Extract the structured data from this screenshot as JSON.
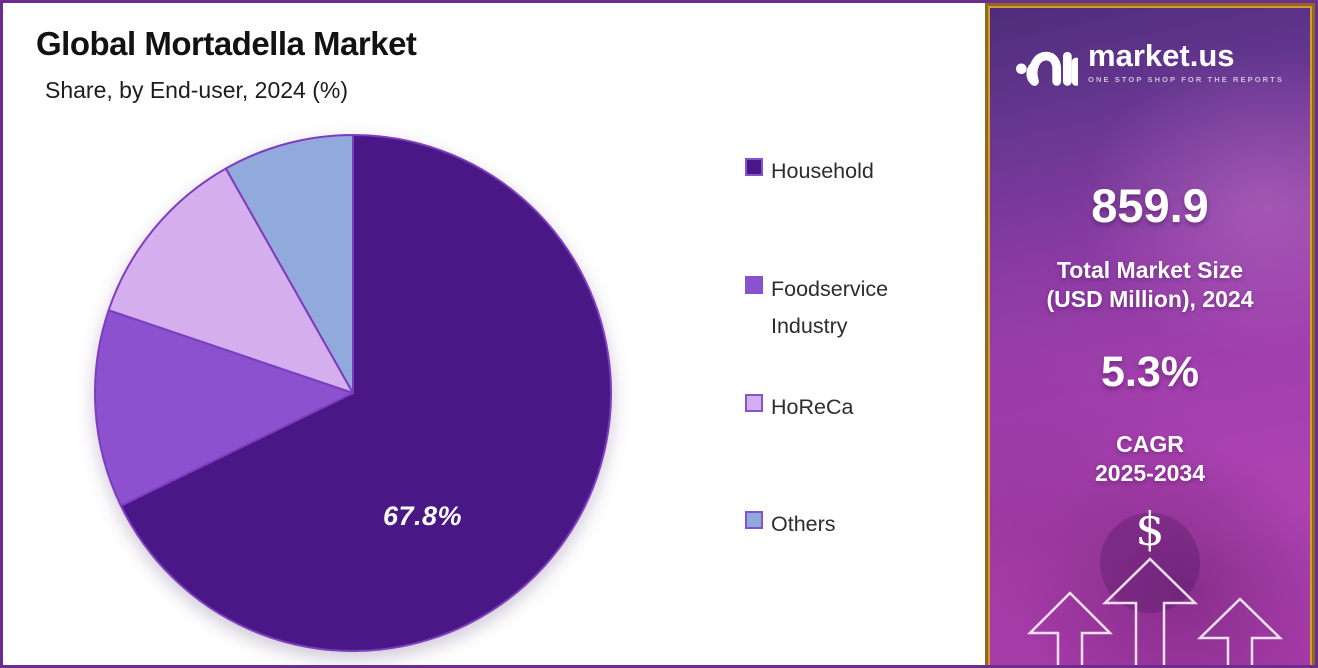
{
  "header": {
    "title": "Global Mortadella Market",
    "subtitle": "Share, by End-user, 2024 (%)"
  },
  "chart_data": {
    "type": "pie",
    "title": "Global Mortadella Market Share, by End-user, 2024 (%)",
    "unit": "%",
    "start_angle_deg": 0,
    "direction": "clockwise",
    "legend_position": "right",
    "slices": [
      {
        "label": "Household",
        "value": 67.8,
        "color": "#4a1787",
        "data_label": "67.8%"
      },
      {
        "label": "Foodservice Industry",
        "value": 12.4,
        "color": "#8b51ce"
      },
      {
        "label": "HoReCa",
        "value": 11.6,
        "color": "#d5aeee"
      },
      {
        "label": "Others",
        "value": 8.2,
        "color": "#92a9dc"
      }
    ],
    "slice_stroke_color": "#7e3cc0",
    "data_label_text": "67.8%"
  },
  "sidebar": {
    "logo": {
      "brand": "market.us",
      "tagline": "ONE STOP SHOP FOR THE REPORTS"
    },
    "market_size": {
      "value": "859.9",
      "label_line1": "Total Market Size",
      "label_line2": "(USD Million), 2024"
    },
    "cagr": {
      "value": "5.3%",
      "label_line1": "CAGR",
      "label_line2": "2025-2034"
    },
    "dollar_symbol": "$",
    "colors": {
      "background_top": "#4e2c7a",
      "background_bottom": "#a63aa7",
      "border_gold": "#d8992e",
      "border_outer": "#8c6b1e"
    }
  },
  "page": {
    "border_color": "#6b2d90"
  }
}
